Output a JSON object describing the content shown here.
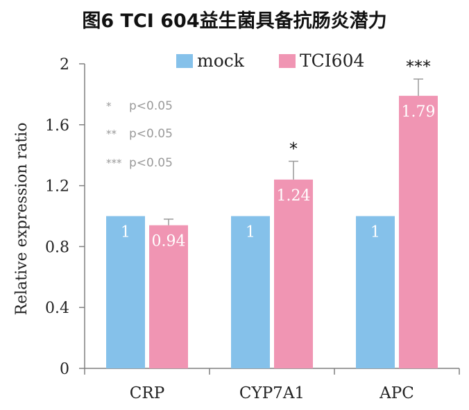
{
  "chart_data": {
    "type": "bar",
    "title": "图6 TCI 604益生菌具备抗肠炎潜力",
    "xlabel": "",
    "ylabel": "Relative expression ratio",
    "ylim": [
      0,
      2
    ],
    "yticks": [
      "0",
      "0.4",
      "0.8",
      "1.2",
      "1.6",
      "2"
    ],
    "categories": [
      "CRP",
      "CYP7A1",
      "APC"
    ],
    "series": [
      {
        "name": "mock",
        "color": "#85c1ea",
        "values": [
          1,
          1,
          1
        ],
        "value_labels": [
          "1",
          "1",
          "1"
        ]
      },
      {
        "name": "TCI604",
        "color": "#f095b3",
        "values": [
          0.94,
          1.24,
          1.79
        ],
        "value_labels": [
          "0.94",
          "1.24",
          "1.79"
        ],
        "error_tops": [
          0.98,
          1.36,
          1.9
        ]
      }
    ],
    "significance": [
      "",
      "*",
      "***"
    ],
    "legend_position": "top",
    "grid": false,
    "annotations": [
      {
        "symbol": "*",
        "text": "p<0.05"
      },
      {
        "symbol": "**",
        "text": "p<0.05"
      },
      {
        "symbol": "***",
        "text": "p<0.05"
      }
    ]
  }
}
